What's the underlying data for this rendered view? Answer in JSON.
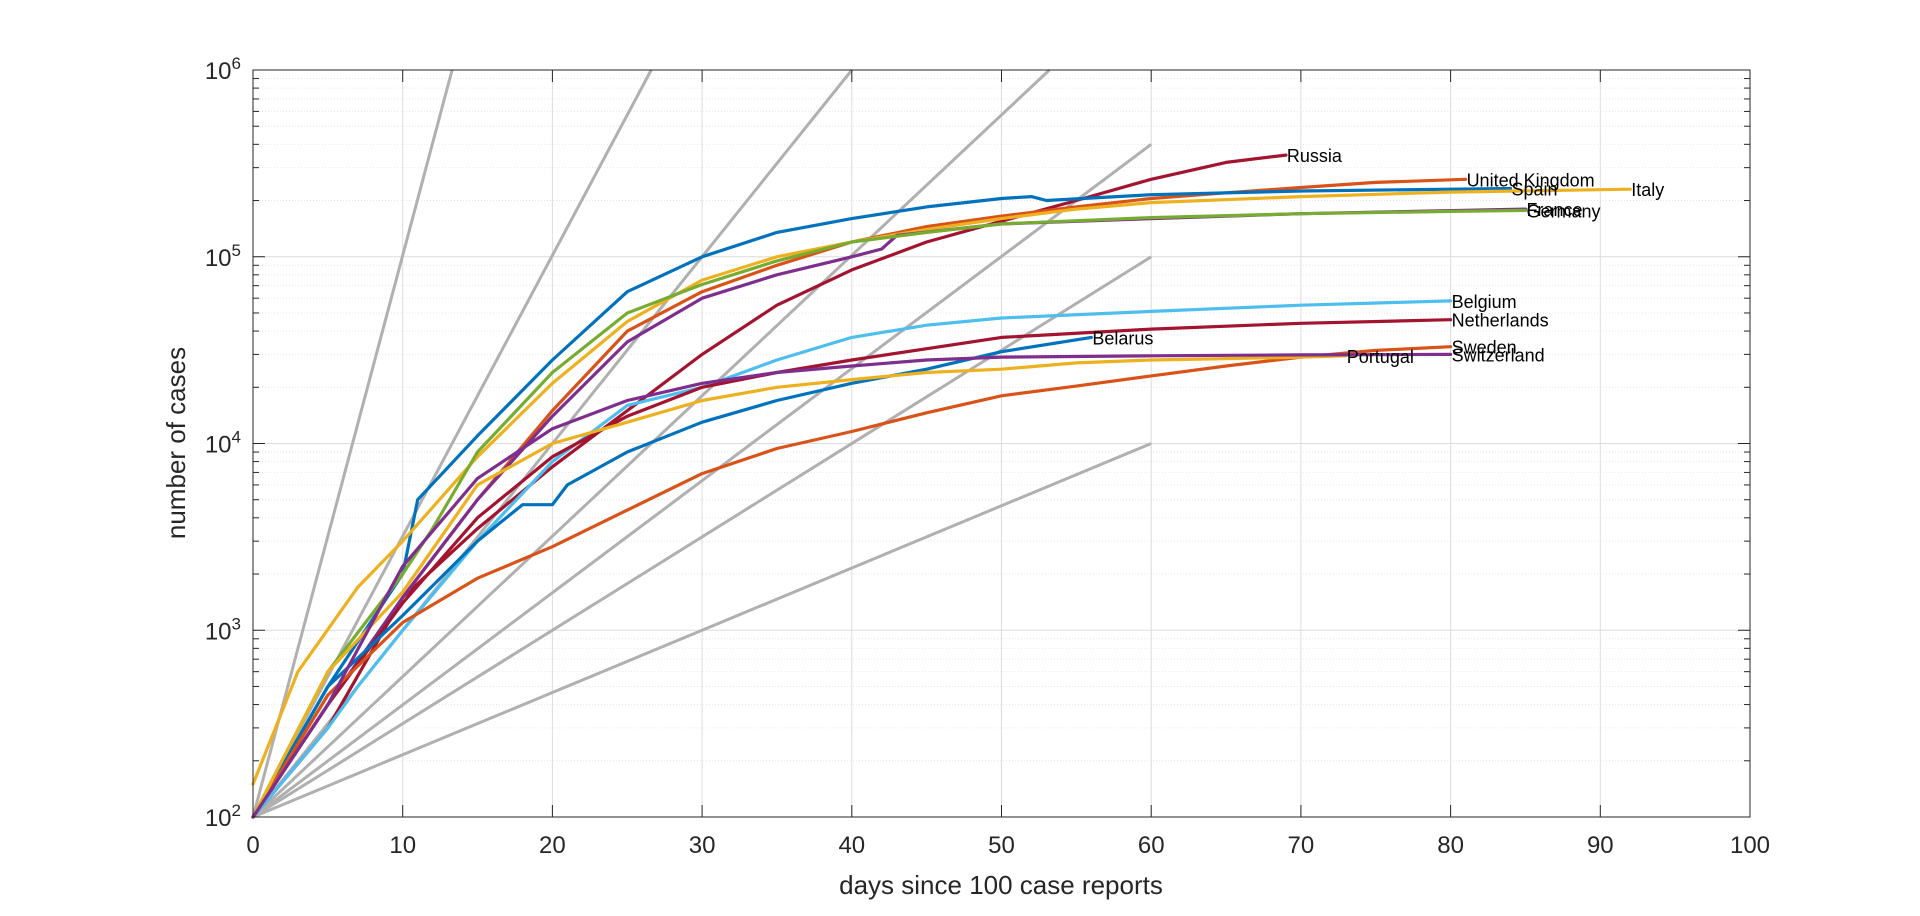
{
  "chart_data": {
    "type": "line",
    "title": "",
    "xlabel": "days since 100 case reports",
    "ylabel": "number of cases",
    "xlim": [
      0,
      100
    ],
    "ylim": [
      100,
      1000000
    ],
    "yscale": "log",
    "grid": true,
    "x_ticks": [
      "0",
      "10",
      "20",
      "30",
      "40",
      "50",
      "60",
      "70",
      "80",
      "90",
      "100"
    ],
    "y_tick_base": "10",
    "y_tick_exponents": [
      "2",
      "3",
      "4",
      "5",
      "6"
    ],
    "colors": {
      "blue": "#0072BD",
      "orange": "#D95319",
      "yellow": "#EDB120",
      "purple": "#7E2F8E",
      "green": "#77AC30",
      "cyan": "#4DBEEE",
      "crimson": "#A2142F",
      "reference": "#b0b0b0"
    },
    "reference_lines": [
      {
        "x": [
          0,
          13.3
        ],
        "y": [
          100,
          1000000
        ]
      },
      {
        "x": [
          0,
          26.6
        ],
        "y": [
          100,
          1000000
        ]
      },
      {
        "x": [
          0,
          40
        ],
        "y": [
          100,
          1000000
        ]
      },
      {
        "x": [
          0,
          53.2
        ],
        "y": [
          100,
          1000000
        ]
      },
      {
        "x": [
          0,
          60
        ],
        "y": [
          100,
          400000
        ]
      },
      {
        "x": [
          0,
          60
        ],
        "y": [
          100,
          100000
        ]
      },
      {
        "x": [
          0,
          60
        ],
        "y": [
          100,
          10000
        ]
      }
    ],
    "series": [
      {
        "name": "Russia",
        "color": "crimson",
        "x": [
          0,
          5,
          10,
          15,
          20,
          25,
          30,
          35,
          40,
          45,
          50,
          55,
          60,
          65,
          69
        ],
        "y": [
          100,
          300,
          1500,
          3500,
          7500,
          15000,
          30000,
          55000,
          85000,
          120000,
          155000,
          200000,
          260000,
          320000,
          350000
        ]
      },
      {
        "name": "United Kingdom",
        "color": "orange",
        "x": [
          0,
          5,
          10,
          15,
          20,
          25,
          30,
          35,
          40,
          45,
          50,
          55,
          60,
          65,
          70,
          75,
          81
        ],
        "y": [
          100,
          400,
          1500,
          5000,
          15000,
          40000,
          65000,
          90000,
          120000,
          145000,
          165000,
          185000,
          205000,
          220000,
          235000,
          250000,
          260000
        ]
      },
      {
        "name": "Spain",
        "color": "blue",
        "x": [
          0,
          5,
          10,
          11,
          15,
          20,
          25,
          30,
          35,
          40,
          45,
          50,
          52,
          53,
          60,
          70,
          80,
          84
        ],
        "y": [
          100,
          500,
          2000,
          5000,
          11000,
          28000,
          65000,
          100000,
          135000,
          160000,
          185000,
          205000,
          210000,
          200000,
          215000,
          225000,
          230000,
          232000
        ]
      },
      {
        "name": "Italy",
        "color": "yellow",
        "x": [
          0,
          3,
          7,
          10,
          15,
          20,
          25,
          30,
          35,
          40,
          45,
          50,
          55,
          60,
          70,
          80,
          92
        ],
        "y": [
          150,
          600,
          1700,
          3000,
          8500,
          21000,
          45000,
          75000,
          100000,
          120000,
          140000,
          160000,
          180000,
          195000,
          210000,
          222000,
          230000
        ]
      },
      {
        "name": "France",
        "color": "purple",
        "x": [
          0,
          5,
          10,
          15,
          20,
          25,
          30,
          35,
          40,
          42,
          43,
          50,
          60,
          70,
          85
        ],
        "y": [
          100,
          400,
          1500,
          5000,
          14000,
          35000,
          60000,
          80000,
          100000,
          110000,
          130000,
          150000,
          160000,
          170000,
          180000
        ]
      },
      {
        "name": "Germany",
        "color": "green",
        "x": [
          0,
          5,
          10,
          12,
          15,
          20,
          25,
          30,
          35,
          40,
          45,
          50,
          60,
          70,
          80,
          85
        ],
        "y": [
          100,
          600,
          2000,
          3500,
          9000,
          24000,
          50000,
          71000,
          95000,
          120000,
          135000,
          150000,
          162000,
          170000,
          175000,
          177000
        ]
      },
      {
        "name": "Belgium",
        "color": "cyan",
        "x": [
          0,
          5,
          7,
          10,
          15,
          20,
          25,
          30,
          35,
          40,
          45,
          50,
          60,
          70,
          80
        ],
        "y": [
          100,
          300,
          500,
          1000,
          3000,
          8000,
          16000,
          20000,
          28000,
          37000,
          43000,
          47000,
          51000,
          55000,
          58000
        ]
      },
      {
        "name": "Netherlands",
        "color": "crimson",
        "x": [
          0,
          5,
          10,
          15,
          20,
          25,
          30,
          35,
          40,
          50,
          60,
          70,
          80
        ],
        "y": [
          100,
          400,
          1400,
          4000,
          8500,
          14000,
          20000,
          24000,
          28000,
          37000,
          41000,
          44000,
          46000
        ]
      },
      {
        "name": "Belarus",
        "color": "blue",
        "x": [
          0,
          5,
          10,
          15,
          18,
          20,
          21,
          25,
          30,
          35,
          40,
          45,
          50,
          56
        ],
        "y": [
          100,
          500,
          1200,
          3000,
          4700,
          4700,
          6000,
          9000,
          13000,
          17000,
          21000,
          25000,
          31000,
          37000
        ]
      },
      {
        "name": "Sweden",
        "color": "orange",
        "x": [
          0,
          5,
          10,
          15,
          20,
          25,
          30,
          35,
          40,
          45,
          50,
          55,
          60,
          65,
          70,
          75,
          80
        ],
        "y": [
          100,
          450,
          1100,
          1900,
          2800,
          4400,
          6900,
          9400,
          11600,
          14600,
          18000,
          20300,
          23000,
          26000,
          29000,
          31500,
          33000
        ]
      },
      {
        "name": "Portugal",
        "color": "yellow",
        "x": [
          0,
          5,
          10,
          15,
          20,
          25,
          30,
          35,
          40,
          45,
          50,
          55,
          60,
          65,
          70,
          73
        ],
        "y": [
          100,
          600,
          1600,
          6000,
          10000,
          13000,
          17000,
          20000,
          22000,
          24000,
          25000,
          27000,
          28000,
          28500,
          29000,
          29500
        ]
      },
      {
        "name": "Switzerland",
        "color": "purple",
        "x": [
          0,
          5,
          10,
          15,
          20,
          25,
          30,
          35,
          40,
          45,
          50,
          60,
          70,
          80
        ],
        "y": [
          100,
          400,
          2200,
          6500,
          12000,
          17000,
          21000,
          24000,
          26000,
          28000,
          29000,
          29500,
          29800,
          30000
        ]
      }
    ]
  }
}
